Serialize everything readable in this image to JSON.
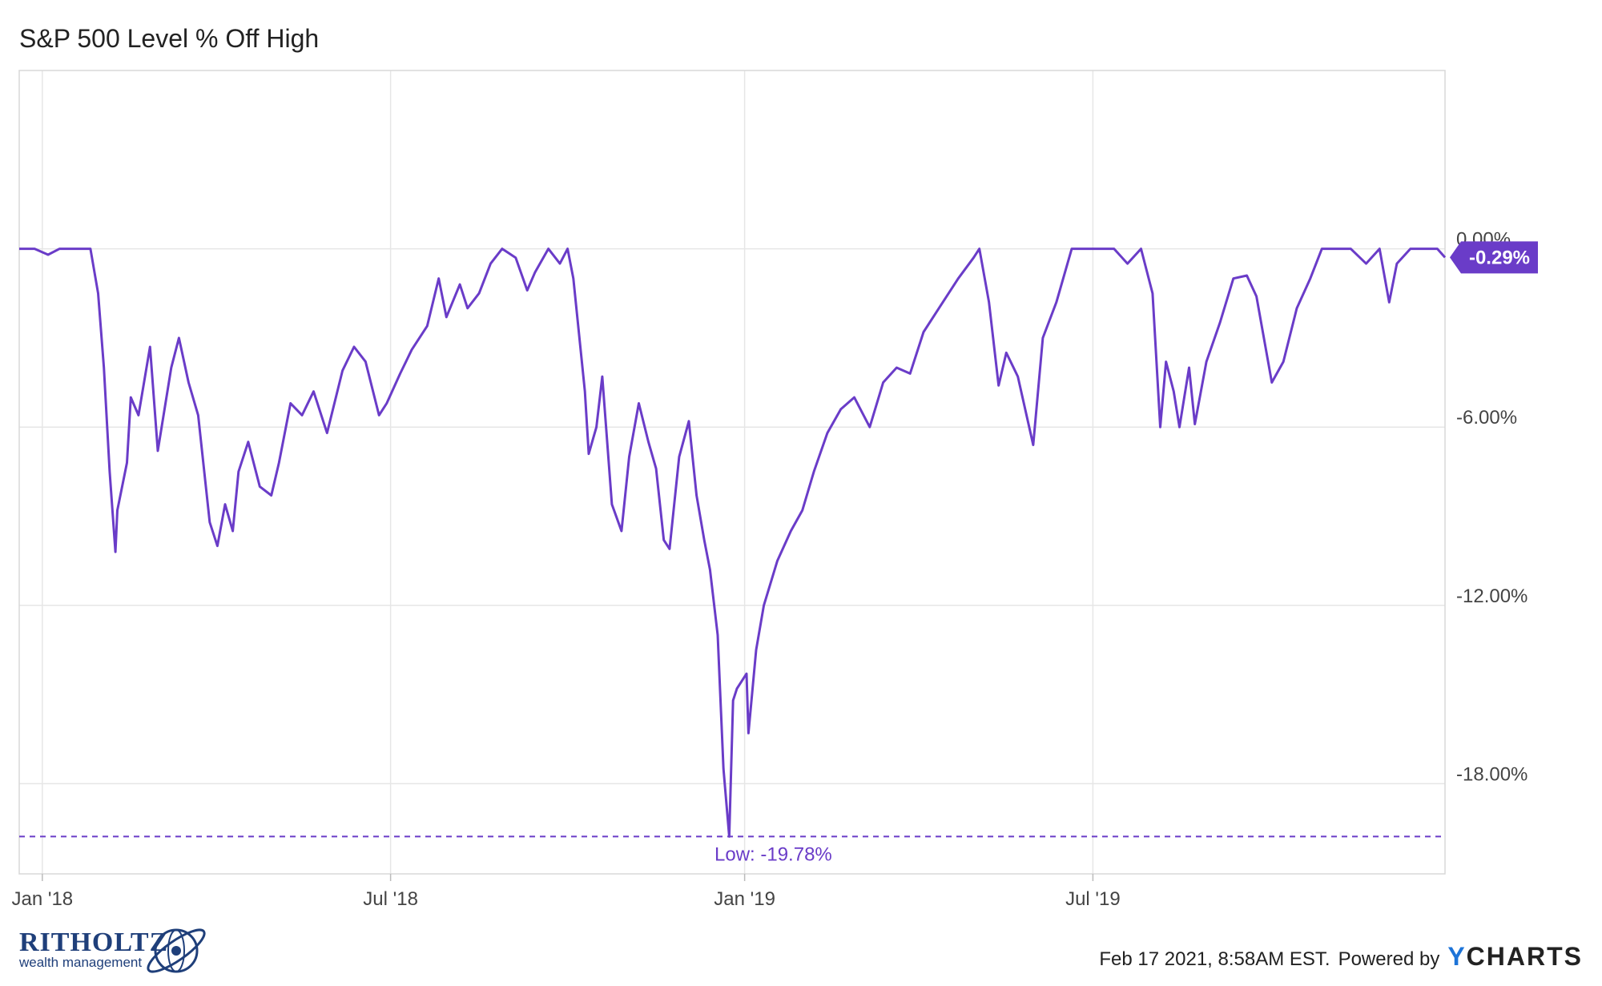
{
  "chart_data": {
    "type": "line",
    "title": "S&P 500 Level % Off High",
    "x_ticks": [
      "Jan '18",
      "Jul '18",
      "Jan '19",
      "Jul '19"
    ],
    "y_ticks": [
      "0.00%",
      "-6.00%",
      "-12.00%",
      "-18.00%"
    ],
    "y_tick_values": [
      0,
      -6,
      -12,
      -18
    ],
    "ylim": [
      -20.2,
      6.0
    ],
    "xlim": [
      "2017-12-20",
      "2019-12-31"
    ],
    "grid": true,
    "series": [
      {
        "color": "#6a3cc8",
        "points": [
          [
            "2017-12-20",
            0.0
          ],
          [
            "2017-12-28",
            0.0
          ],
          [
            "2018-01-04",
            -0.2
          ],
          [
            "2018-01-10",
            0.0
          ],
          [
            "2018-01-18",
            0.0
          ],
          [
            "2018-01-26",
            0.0
          ],
          [
            "2018-01-30",
            -1.5
          ],
          [
            "2018-02-02",
            -4.0
          ],
          [
            "2018-02-05",
            -7.5
          ],
          [
            "2018-02-08",
            -10.2
          ],
          [
            "2018-02-09",
            -8.8
          ],
          [
            "2018-02-14",
            -7.2
          ],
          [
            "2018-02-16",
            -5.0
          ],
          [
            "2018-02-20",
            -5.6
          ],
          [
            "2018-02-26",
            -3.3
          ],
          [
            "2018-03-02",
            -6.8
          ],
          [
            "2018-03-09",
            -4.0
          ],
          [
            "2018-03-13",
            -3.0
          ],
          [
            "2018-03-18",
            -4.5
          ],
          [
            "2018-03-23",
            -5.6
          ],
          [
            "2018-03-29",
            -9.2
          ],
          [
            "2018-04-02",
            -10.0
          ],
          [
            "2018-04-06",
            -8.6
          ],
          [
            "2018-04-10",
            -9.5
          ],
          [
            "2018-04-13",
            -7.5
          ],
          [
            "2018-04-18",
            -6.5
          ],
          [
            "2018-04-24",
            -8.0
          ],
          [
            "2018-04-30",
            -8.3
          ],
          [
            "2018-05-04",
            -7.2
          ],
          [
            "2018-05-10",
            -5.2
          ],
          [
            "2018-05-16",
            -5.6
          ],
          [
            "2018-05-22",
            -4.8
          ],
          [
            "2018-05-29",
            -6.2
          ],
          [
            "2018-06-06",
            -4.1
          ],
          [
            "2018-06-12",
            -3.3
          ],
          [
            "2018-06-18",
            -3.8
          ],
          [
            "2018-06-25",
            -5.6
          ],
          [
            "2018-06-29",
            -5.2
          ],
          [
            "2018-07-06",
            -4.2
          ],
          [
            "2018-07-12",
            -3.4
          ],
          [
            "2018-07-20",
            -2.6
          ],
          [
            "2018-07-26",
            -1.0
          ],
          [
            "2018-07-30",
            -2.3
          ],
          [
            "2018-08-06",
            -1.2
          ],
          [
            "2018-08-10",
            -2.0
          ],
          [
            "2018-08-16",
            -1.5
          ],
          [
            "2018-08-22",
            -0.5
          ],
          [
            "2018-08-28",
            0.0
          ],
          [
            "2018-09-04",
            -0.3
          ],
          [
            "2018-09-10",
            -1.4
          ],
          [
            "2018-09-14",
            -0.8
          ],
          [
            "2018-09-21",
            0.0
          ],
          [
            "2018-09-27",
            -0.5
          ],
          [
            "2018-10-01",
            0.0
          ],
          [
            "2018-10-04",
            -1.0
          ],
          [
            "2018-10-10",
            -4.8
          ],
          [
            "2018-10-12",
            -6.9
          ],
          [
            "2018-10-16",
            -6.0
          ],
          [
            "2018-10-19",
            -4.3
          ],
          [
            "2018-10-24",
            -8.6
          ],
          [
            "2018-10-29",
            -9.5
          ],
          [
            "2018-11-02",
            -7.0
          ],
          [
            "2018-11-07",
            -5.2
          ],
          [
            "2018-11-12",
            -6.5
          ],
          [
            "2018-11-16",
            -7.4
          ],
          [
            "2018-11-20",
            -9.8
          ],
          [
            "2018-11-23",
            -10.1
          ],
          [
            "2018-11-28",
            -7.0
          ],
          [
            "2018-12-03",
            -5.8
          ],
          [
            "2018-12-07",
            -8.3
          ],
          [
            "2018-12-11",
            -9.8
          ],
          [
            "2018-12-14",
            -10.8
          ],
          [
            "2018-12-18",
            -13.0
          ],
          [
            "2018-12-21",
            -17.5
          ],
          [
            "2018-12-24",
            -19.78
          ],
          [
            "2018-12-26",
            -15.2
          ],
          [
            "2018-12-28",
            -14.8
          ],
          [
            "2019-01-02",
            -14.3
          ],
          [
            "2019-01-03",
            -16.3
          ],
          [
            "2019-01-07",
            -13.5
          ],
          [
            "2019-01-11",
            -12.0
          ],
          [
            "2019-01-18",
            -10.5
          ],
          [
            "2019-01-25",
            -9.5
          ],
          [
            "2019-01-31",
            -8.8
          ],
          [
            "2019-02-06",
            -7.5
          ],
          [
            "2019-02-13",
            -6.2
          ],
          [
            "2019-02-20",
            -5.4
          ],
          [
            "2019-02-27",
            -5.0
          ],
          [
            "2019-03-07",
            -6.0
          ],
          [
            "2019-03-14",
            -4.5
          ],
          [
            "2019-03-21",
            -4.0
          ],
          [
            "2019-03-28",
            -4.2
          ],
          [
            "2019-04-04",
            -2.8
          ],
          [
            "2019-04-12",
            -2.0
          ],
          [
            "2019-04-22",
            -1.0
          ],
          [
            "2019-04-30",
            -0.3
          ],
          [
            "2019-05-03",
            0.0
          ],
          [
            "2019-05-08",
            -1.8
          ],
          [
            "2019-05-13",
            -4.6
          ],
          [
            "2019-05-17",
            -3.5
          ],
          [
            "2019-05-23",
            -4.3
          ],
          [
            "2019-05-31",
            -6.6
          ],
          [
            "2019-06-05",
            -3.0
          ],
          [
            "2019-06-12",
            -1.8
          ],
          [
            "2019-06-20",
            0.0
          ],
          [
            "2019-06-28",
            0.0
          ],
          [
            "2019-07-03",
            0.0
          ],
          [
            "2019-07-12",
            0.0
          ],
          [
            "2019-07-19",
            -0.5
          ],
          [
            "2019-07-26",
            0.0
          ],
          [
            "2019-08-01",
            -1.5
          ],
          [
            "2019-08-05",
            -6.0
          ],
          [
            "2019-08-08",
            -3.8
          ],
          [
            "2019-08-12",
            -4.8
          ],
          [
            "2019-08-15",
            -6.0
          ],
          [
            "2019-08-20",
            -4.0
          ],
          [
            "2019-08-23",
            -5.9
          ],
          [
            "2019-08-29",
            -3.8
          ],
          [
            "2019-09-05",
            -2.5
          ],
          [
            "2019-09-12",
            -1.0
          ],
          [
            "2019-09-19",
            -0.9
          ],
          [
            "2019-09-24",
            -1.6
          ],
          [
            "2019-10-02",
            -4.5
          ],
          [
            "2019-10-08",
            -3.8
          ],
          [
            "2019-10-15",
            -2.0
          ],
          [
            "2019-10-22",
            -1.0
          ],
          [
            "2019-10-28",
            0.0
          ],
          [
            "2019-11-05",
            0.0
          ],
          [
            "2019-11-12",
            0.0
          ],
          [
            "2019-11-20",
            -0.5
          ],
          [
            "2019-11-27",
            0.0
          ],
          [
            "2019-12-02",
            -1.8
          ],
          [
            "2019-12-06",
            -0.5
          ],
          [
            "2019-12-13",
            0.0
          ],
          [
            "2019-12-20",
            0.0
          ],
          [
            "2019-12-27",
            0.0
          ],
          [
            "2019-12-31",
            -0.29
          ]
        ]
      }
    ],
    "annotations": {
      "low_line": {
        "value": -19.78,
        "label": "Low: -19.78%"
      },
      "last_value_tag": "-0.29%"
    },
    "footer": {
      "timestamp": "Feb 17 2021, 8:58AM EST.",
      "powered_by": "Powered by",
      "brand_y": "Y",
      "brand_rest": "CHARTS"
    },
    "logo": {
      "name": "RITHOLTZ",
      "sub": "wealth management"
    }
  }
}
